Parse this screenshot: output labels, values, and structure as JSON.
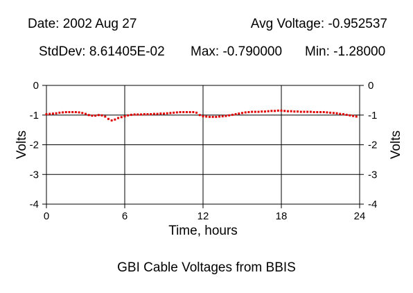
{
  "header": {
    "date": "Date: 2002 Aug 27",
    "avg": "Avg Voltage: -0.952537",
    "stddev": "StdDev: 8.61405E-02",
    "max": "Max: -0.790000",
    "min": "Min: -1.28000"
  },
  "footer": {
    "title": "GBI Cable Voltages from BBIS"
  },
  "chart_data": {
    "type": "scatter",
    "title": "GBI Cable Voltages from BBIS",
    "xlabel": "Time, hours",
    "ylabel": "Volts",
    "xlim": [
      0,
      24
    ],
    "ylim": [
      -4,
      0
    ],
    "xticks": [
      0,
      6,
      12,
      18,
      24
    ],
    "yticks": [
      0,
      -1,
      -2,
      -3,
      -4
    ],
    "grid": true,
    "marker_color": "#e00000",
    "series": [
      {
        "x": [
          0.0,
          0.25,
          0.5,
          0.75,
          1.0,
          1.25,
          1.5,
          1.75,
          2.0,
          2.25,
          2.5,
          2.75,
          3.0,
          3.25,
          3.5,
          3.75,
          4.0,
          4.25,
          4.5,
          4.75,
          5.0,
          5.25,
          5.5,
          5.75,
          6.0,
          6.25,
          6.5,
          6.75,
          7.0,
          7.25,
          7.5,
          7.75,
          8.0,
          8.25,
          8.5,
          8.75,
          9.0,
          9.25,
          9.5,
          9.75,
          10.0,
          10.25,
          10.5,
          10.75,
          11.0,
          11.25,
          11.5,
          11.75,
          12.0,
          12.25,
          12.5,
          12.75,
          13.0,
          13.25,
          13.5,
          13.75,
          14.0,
          14.25,
          14.5,
          14.75,
          15.0,
          15.25,
          15.5,
          15.75,
          16.0,
          16.25,
          16.5,
          16.75,
          17.0,
          17.25,
          17.5,
          17.75,
          18.0,
          18.25,
          18.5,
          18.75,
          19.0,
          19.25,
          19.5,
          19.75,
          20.0,
          20.25,
          20.5,
          20.75,
          21.0,
          21.25,
          21.5,
          21.75,
          22.0,
          22.25,
          22.5,
          22.75,
          23.0,
          23.25,
          23.5,
          23.75
        ],
        "y": [
          -0.97,
          -0.96,
          -0.95,
          -0.94,
          -0.92,
          -0.91,
          -0.9,
          -0.9,
          -0.9,
          -0.9,
          -0.91,
          -0.93,
          -0.96,
          -1.0,
          -1.02,
          -1.02,
          -1.0,
          -1.01,
          -1.05,
          -1.13,
          -1.18,
          -1.15,
          -1.1,
          -1.07,
          -1.04,
          -1.01,
          -0.99,
          -0.98,
          -0.98,
          -0.98,
          -0.97,
          -0.97,
          -0.97,
          -0.96,
          -0.96,
          -0.95,
          -0.95,
          -0.94,
          -0.93,
          -0.92,
          -0.91,
          -0.9,
          -0.9,
          -0.9,
          -0.9,
          -0.9,
          -0.92,
          -1.0,
          -1.04,
          -1.05,
          -1.06,
          -1.06,
          -1.06,
          -1.05,
          -1.04,
          -1.03,
          -1.01,
          -0.99,
          -0.97,
          -0.95,
          -0.93,
          -0.91,
          -0.9,
          -0.89,
          -0.89,
          -0.89,
          -0.88,
          -0.88,
          -0.87,
          -0.86,
          -0.86,
          -0.85,
          -0.85,
          -0.86,
          -0.87,
          -0.87,
          -0.88,
          -0.88,
          -0.89,
          -0.89,
          -0.89,
          -0.89,
          -0.9,
          -0.9,
          -0.9,
          -0.9,
          -0.91,
          -0.92,
          -0.93,
          -0.94,
          -0.96,
          -0.97,
          -0.99,
          -1.01,
          -1.03,
          -1.05
        ]
      }
    ]
  }
}
